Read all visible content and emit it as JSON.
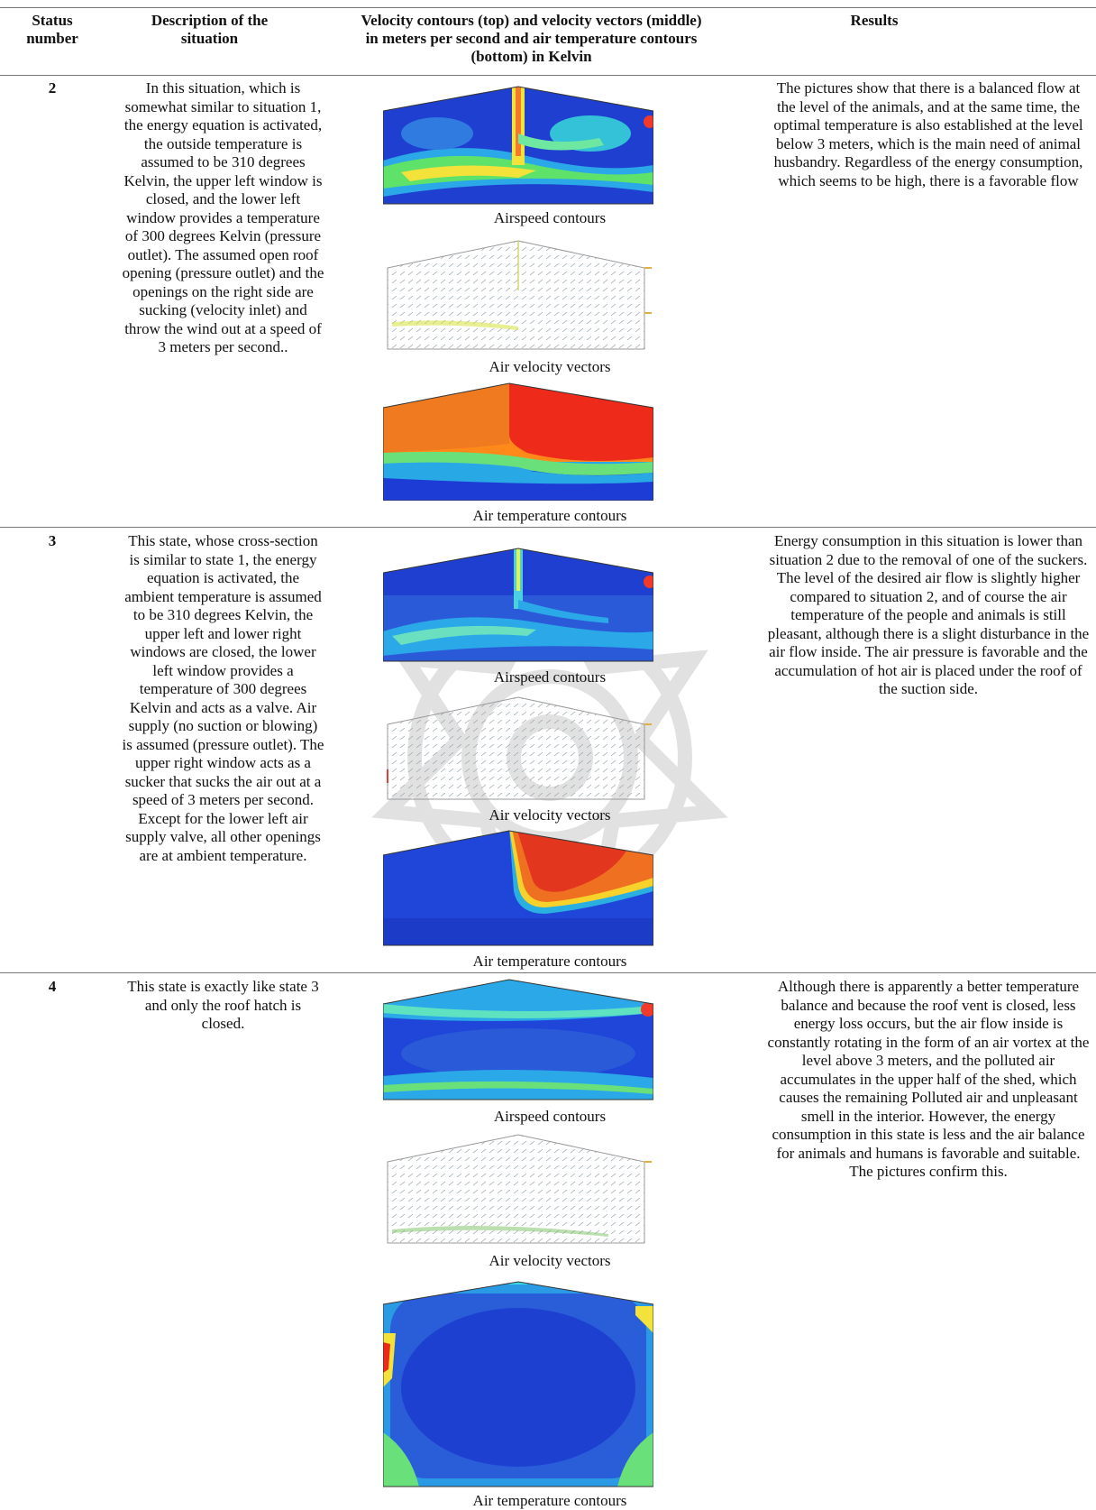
{
  "header": {
    "status": "Status number",
    "description": "Description of the situation",
    "contours": "Velocity contours (top) and velocity vectors (middle) in meters per second and air temperature contours (bottom) in Kelvin",
    "results": "Results"
  },
  "rows": [
    {
      "number": "2",
      "description": "In this situation, which is somewhat similar to situation 1, the energy equation is activated, the outside temperature is assumed to be 310 degrees Kelvin, the upper left window is closed, and the lower left window provides a temperature of 300 degrees Kelvin (pressure outlet). The assumed open roof opening (pressure outlet) and the openings on the right side are sucking (velocity inlet) and throw the wind out at a speed of 3 meters per second..",
      "captions": [
        "Airspeed contours",
        "Air velocity vectors",
        "Air temperature contours"
      ],
      "results": "The pictures show that there is a balanced flow at the level of the animals, and at the same time, the optimal temperature is also established at the level below 3 meters, which is the main need of animal husbandry. Regardless of the energy consumption, which seems to be high, there is a favorable flow"
    },
    {
      "number": "3",
      "description": "This state, whose cross-section is similar to state 1, the energy equation is activated, the ambient temperature is assumed to be 310 degrees Kelvin, the upper left and lower right windows are closed, the lower left window provides a temperature of 300 degrees Kelvin and acts as a valve. Air supply (no suction or blowing) is assumed (pressure outlet). The upper right window acts as a sucker that sucks the air out at a speed of 3 meters per second. Except for the lower left air supply valve, all other openings are at ambient temperature.",
      "captions": [
        "Airspeed contours",
        "Air velocity vectors",
        "Air temperature contours"
      ],
      "results": "Energy consumption in this situation is lower than situation 2 due to the removal of one of the suckers. The level of the desired air flow is slightly higher compared to situation 2, and of course the air temperature of the people and animals is still pleasant, although there is a slight disturbance in the air flow inside. The air pressure is favorable and the accumulation of hot air is placed under the roof of the suction side."
    },
    {
      "number": "4",
      "description": "This state is exactly like state 3 and only the roof hatch is closed.",
      "captions": [
        "Airspeed contours",
        "Air velocity vectors",
        "Air temperature contours"
      ],
      "results": "Although there is apparently a better temperature balance and because the roof vent is closed, less energy loss occurs, but the air flow inside is constantly rotating in the form of an air vortex at the level above 3 meters, and the polluted air accumulates in the upper half of the shed, which causes the remaining Polluted air and unpleasant smell in the interior. However, the energy consumption in this state is less and the air balance for animals and humans is favorable and suitable. The pictures confirm this."
    }
  ]
}
